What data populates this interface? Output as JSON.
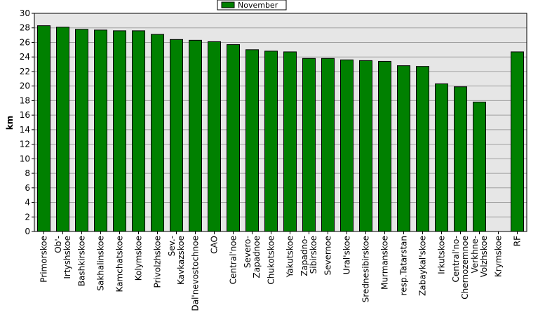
{
  "chart_data": {
    "type": "bar",
    "title": "",
    "xlabel": "",
    "ylabel": "km",
    "ylim": [
      0,
      30
    ],
    "yticks": [
      0,
      2,
      4,
      6,
      8,
      10,
      12,
      14,
      16,
      18,
      20,
      22,
      24,
      26,
      28,
      30
    ],
    "grid": true,
    "legend_position": "top-center",
    "categories": [
      "Primorskoe",
      "Ob'-Irtyshskoe",
      "Bashkirskoe",
      "Sakhalinskoe",
      "Kamchatskoe",
      "Kolymskoe",
      "Privolzhskoe",
      "Sev.-Kavkazskoe",
      "Dal'nevostochnoe",
      "CAO",
      "Central'noe",
      "Severo-Zapadnoe",
      "Chukotskoe",
      "Yakutskoe",
      "Zapadno-Sibirskoe",
      "Severnoe",
      "Ural'skoe",
      "Srednesibirskoe",
      "Murmanskoe",
      "resp.Tatarstan",
      "Zabaykal'skoe",
      "Irkutskoe",
      "Central'no-Chernozemnoe",
      "Verkhne-Volzhskoe",
      "Krymskoe",
      "RF"
    ],
    "category_lines": [
      [
        "Primorskoe"
      ],
      [
        "Ob'-",
        "Irtyshskoe"
      ],
      [
        "Bashkirskoe"
      ],
      [
        "Sakhalinskoe"
      ],
      [
        "Kamchatskoe"
      ],
      [
        "Kolymskoe"
      ],
      [
        "Privolzhskoe"
      ],
      [
        "Sev.-",
        "Kavkazskoe"
      ],
      [
        "Dal'nevostochnoe"
      ],
      [
        "CAO"
      ],
      [
        "Central'noe"
      ],
      [
        "Severo-",
        "Zapadnoe"
      ],
      [
        "Chukotskoe"
      ],
      [
        "Yakutskoe"
      ],
      [
        "Zapadno-",
        "Sibirskoe"
      ],
      [
        "Severnoe"
      ],
      [
        "Ural'skoe"
      ],
      [
        "Srednesibirskoe"
      ],
      [
        "Murmanskoe"
      ],
      [
        "resp.Tatarstan"
      ],
      [
        "Zabaykal'skoe"
      ],
      [
        "Irkutskoe"
      ],
      [
        "Central'no-",
        "Chernozemnoe"
      ],
      [
        "Verkhne-",
        "Volzhskoe"
      ],
      [
        "Krymskoe"
      ],
      [
        "RF"
      ]
    ],
    "series": [
      {
        "name": "November",
        "color": "#008000",
        "values": [
          28.3,
          28.1,
          27.8,
          27.7,
          27.6,
          27.6,
          27.1,
          26.4,
          26.3,
          26.1,
          25.7,
          25.0,
          24.8,
          24.7,
          23.8,
          23.8,
          23.6,
          23.5,
          23.4,
          22.8,
          22.7,
          20.3,
          19.9,
          17.8,
          null,
          24.7
        ]
      }
    ],
    "colors": {
      "plot_background": "#e6e6e6",
      "gridline": "#a0a0a0",
      "bar": "#008000"
    }
  }
}
